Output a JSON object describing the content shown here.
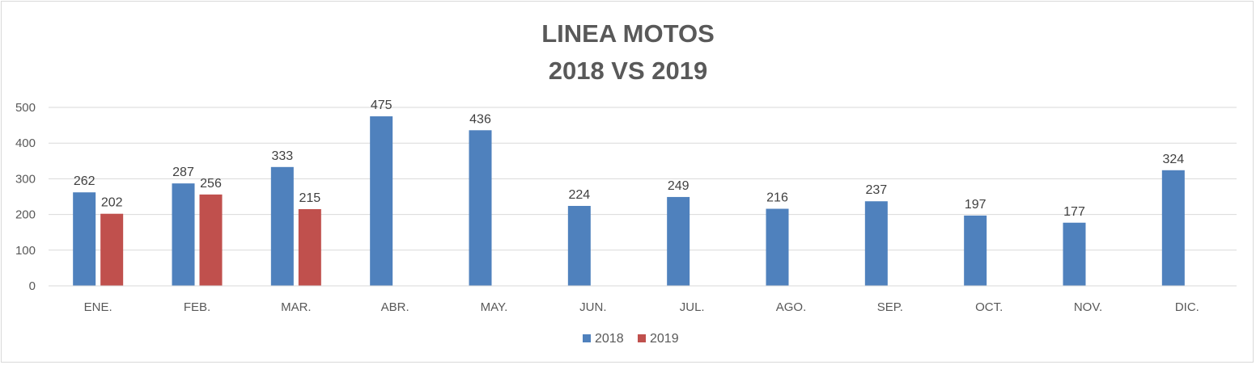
{
  "chart_data": {
    "type": "bar",
    "title_lines": [
      "LINEA MOTOS",
      "2018 VS 2019"
    ],
    "categories": [
      "ENE.",
      "FEB.",
      "MAR.",
      "ABR.",
      "MAY.",
      "JUN.",
      "JUL.",
      "AGO.",
      "SEP.",
      "OCT.",
      "NOV.",
      "DIC."
    ],
    "series": [
      {
        "name": "2018",
        "color": "#4f81bd",
        "values": [
          262,
          287,
          333,
          475,
          436,
          224,
          249,
          216,
          237,
          197,
          177,
          324
        ]
      },
      {
        "name": "2019",
        "color": "#c0504d",
        "values": [
          202,
          256,
          215,
          null,
          null,
          null,
          null,
          null,
          null,
          null,
          null,
          null
        ]
      }
    ],
    "ylim": [
      0,
      500
    ],
    "yticks": [
      0,
      100,
      200,
      300,
      400,
      500
    ],
    "grid": true,
    "legend_position": "bottom",
    "data_labels": true
  }
}
